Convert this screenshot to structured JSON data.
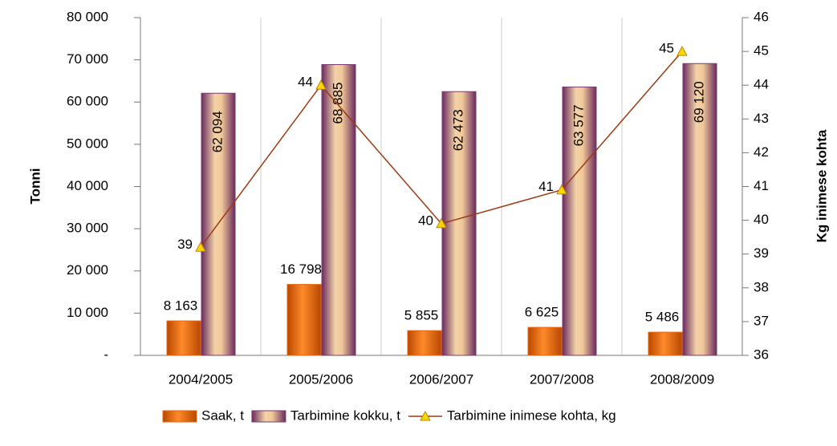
{
  "chart_data": {
    "type": "bar-line",
    "categories": [
      "2004/2005",
      "2005/2006",
      "2006/2007",
      "2007/2008",
      "2008/2009"
    ],
    "y_label": "Tonni",
    "y2_label": "Kg inimese kohta",
    "ylim": [
      0,
      80000
    ],
    "yticks": [
      {
        "value": 0,
        "label": "-"
      },
      {
        "value": 10000,
        "label": "10 000"
      },
      {
        "value": 20000,
        "label": "20 000"
      },
      {
        "value": 30000,
        "label": "30 000"
      },
      {
        "value": 40000,
        "label": "40 000"
      },
      {
        "value": 50000,
        "label": "50 000"
      },
      {
        "value": 60000,
        "label": "60 000"
      },
      {
        "value": 70000,
        "label": "70 000"
      },
      {
        "value": 80000,
        "label": "80 000"
      }
    ],
    "y2lim": [
      36,
      46
    ],
    "y2ticks": [
      36,
      37,
      38,
      39,
      40,
      41,
      42,
      43,
      44,
      45,
      46
    ],
    "series": [
      {
        "name": "Saak, t",
        "type": "bar",
        "color": "#e8650a",
        "values": [
          8163,
          16798,
          5855,
          6625,
          5486
        ],
        "value_labels": [
          "8 163",
          "16 798",
          "5 855",
          "6 625",
          "5 486"
        ]
      },
      {
        "name": "Tarbimine kokku, t",
        "type": "bar",
        "color": "#7a3a6e",
        "values": [
          62094,
          68885,
          62473,
          63577,
          69120
        ],
        "value_labels": [
          "62 094",
          "68 885",
          "62 473",
          "63 577",
          "69 120"
        ]
      },
      {
        "name": "Tarbimine inimese kohta, kg",
        "type": "line",
        "axis": "y2",
        "color": "#9c3a12",
        "values": [
          39.2,
          44,
          39.9,
          40.9,
          45
        ],
        "value_labels": [
          "39",
          "44",
          "40",
          "41",
          "45"
        ]
      }
    ]
  }
}
